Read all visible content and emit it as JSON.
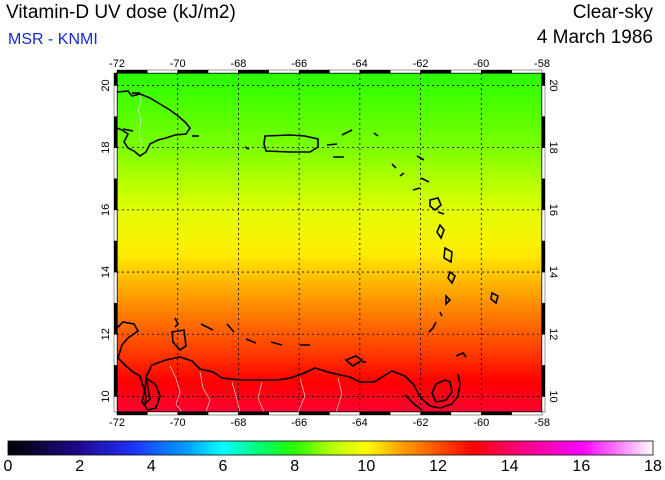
{
  "header": {
    "title": "Vitamin-D UV dose (kJ/m2)",
    "subtitle": "MSR - KNMI",
    "condition": "Clear-sky",
    "date": "4 March 1986"
  },
  "map": {
    "lon_ticks": [
      "-72",
      "-70",
      "-68",
      "-66",
      "-64",
      "-62",
      "-60",
      "-58"
    ],
    "lat_ticks": [
      "10",
      "12",
      "14",
      "16",
      "18",
      "20"
    ],
    "lon_range": [
      -72,
      -58
    ],
    "lat_range": [
      9.5,
      20.4
    ],
    "grid": true,
    "gradient": [
      {
        "lat": 20.4,
        "value": 8.0
      },
      {
        "lat": 18.0,
        "value": 8.6
      },
      {
        "lat": 16.0,
        "value": 9.6
      },
      {
        "lat": 14.6,
        "value": 10.2
      },
      {
        "lat": 13.0,
        "value": 11.2
      },
      {
        "lat": 11.5,
        "value": 12.2
      },
      {
        "lat": 10.5,
        "value": 13.0
      },
      {
        "lat": 9.5,
        "value": 13.5
      }
    ]
  },
  "colorbar": {
    "min": 0,
    "max": 18,
    "labels": [
      "0",
      "2",
      "4",
      "6",
      "8",
      "10",
      "12",
      "14",
      "16",
      "18"
    ],
    "stops": [
      {
        "v": 0,
        "color": "#000000"
      },
      {
        "v": 2,
        "color": "#1e0a8c"
      },
      {
        "v": 3.5,
        "color": "#1e32ff"
      },
      {
        "v": 5,
        "color": "#00a0ff"
      },
      {
        "v": 6,
        "color": "#00ffff"
      },
      {
        "v": 7,
        "color": "#00ff78"
      },
      {
        "v": 8,
        "color": "#28ff00"
      },
      {
        "v": 9,
        "color": "#b4ff00"
      },
      {
        "v": 10,
        "color": "#ffff00"
      },
      {
        "v": 11,
        "color": "#ffa000"
      },
      {
        "v": 12,
        "color": "#ff5000"
      },
      {
        "v": 13,
        "color": "#ff0000"
      },
      {
        "v": 14,
        "color": "#ff0064"
      },
      {
        "v": 15,
        "color": "#ff00b4"
      },
      {
        "v": 16,
        "color": "#ff00ff"
      },
      {
        "v": 17,
        "color": "#ff78ff"
      },
      {
        "v": 18,
        "color": "#ffffff"
      }
    ]
  }
}
